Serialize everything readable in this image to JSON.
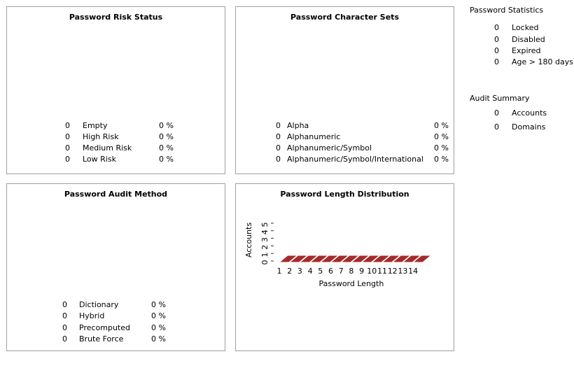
{
  "risk_status": {
    "title": "Password Risk Status",
    "rows": [
      {
        "count": "0",
        "label": "Empty",
        "pct": "0 %"
      },
      {
        "count": "0",
        "label": "High Risk",
        "pct": "0 %"
      },
      {
        "count": "0",
        "label": "Medium Risk",
        "pct": "0 %"
      },
      {
        "count": "0",
        "label": "Low Risk",
        "pct": "0 %"
      }
    ]
  },
  "char_sets": {
    "title": "Password Character Sets",
    "rows": [
      {
        "count": "0",
        "label": "Alpha",
        "pct": "0 %"
      },
      {
        "count": "0",
        "label": "Alphanumeric",
        "pct": "0 %"
      },
      {
        "count": "0",
        "label": "Alphanumeric/Symbol",
        "pct": "0 %"
      },
      {
        "count": "0",
        "label": "Alphanumeric/Symbol/International",
        "pct": "0 %"
      }
    ]
  },
  "audit_method": {
    "title": "Password Audit Method",
    "rows": [
      {
        "count": "0",
        "label": "Dictionary",
        "pct": "0 %"
      },
      {
        "count": "0",
        "label": "Hybrid",
        "pct": "0 %"
      },
      {
        "count": "0",
        "label": "Precomputed",
        "pct": "0 %"
      },
      {
        "count": "0",
        "label": "Brute Force",
        "pct": "0 %"
      }
    ]
  },
  "length_dist": {
    "title": "Password Length Distribution"
  },
  "statistics": {
    "title": "Password Statistics",
    "rows": [
      {
        "count": "0",
        "label": "Locked"
      },
      {
        "count": "0",
        "label": "Disabled"
      },
      {
        "count": "0",
        "label": "Expired"
      },
      {
        "count": "0",
        "label": "Age > 180 days"
      }
    ]
  },
  "audit_summary": {
    "title": "Audit Summary",
    "rows": [
      {
        "count": "0",
        "label": "Accounts"
      },
      {
        "count": "0",
        "label": "Domains"
      }
    ]
  },
  "chart_data": {
    "type": "bar",
    "xlabel": "Password Length",
    "ylabel": "Accounts",
    "categories": [
      "1",
      "2",
      "3",
      "4",
      "5",
      "6",
      "7",
      "8",
      "9",
      "10",
      "11",
      "12",
      "13",
      "14"
    ],
    "values": [
      0,
      0,
      0,
      0,
      0,
      0,
      0,
      0,
      0,
      0,
      0,
      0,
      0,
      0
    ],
    "y_ticks": [
      "0",
      "1",
      "2",
      "3",
      "4",
      "5"
    ],
    "ylim": [
      0,
      5
    ],
    "bar_color": "#a52a2a",
    "style": "3d"
  }
}
